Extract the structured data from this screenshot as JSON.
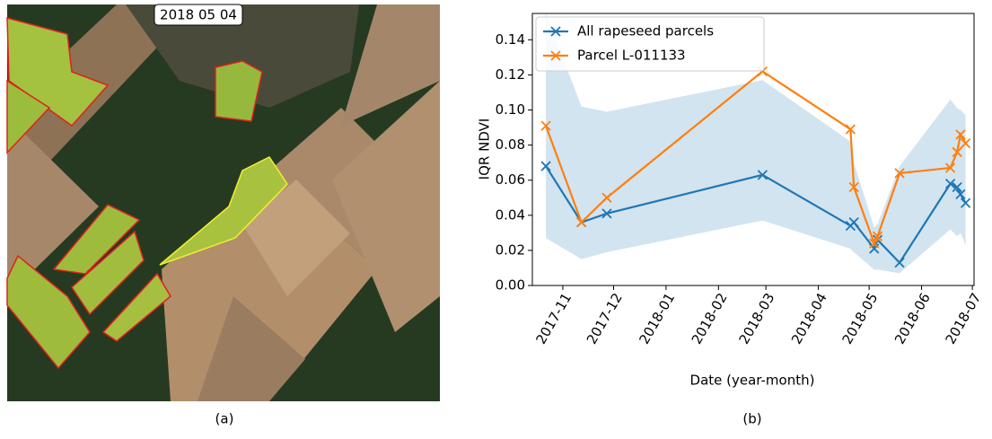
{
  "panel_a": {
    "date_label": "2018 05 04",
    "caption": "(a)"
  },
  "panel_b": {
    "caption": "(b)"
  },
  "chart_data": {
    "type": "line",
    "y_label": "IQR NDVI",
    "x_label": "Date (year-month)",
    "x": [
      "2017-10-22",
      "2017-11-12",
      "2017-11-27",
      "2018-02-27",
      "2018-04-20",
      "2018-04-22",
      "2018-05-04",
      "2018-05-06",
      "2018-05-19",
      "2018-06-18",
      "2018-06-22",
      "2018-06-24",
      "2018-06-27"
    ],
    "series": [
      {
        "name": "All rapeseed parcels",
        "color": "#1f77b4",
        "values": [
          0.068,
          0.036,
          0.041,
          0.063,
          0.034,
          0.036,
          0.021,
          0.026,
          0.013,
          0.058,
          0.056,
          0.052,
          0.047
        ]
      },
      {
        "name": "Parcel L-011133",
        "color": "#ff7f0e",
        "values": [
          0.091,
          0.036,
          0.05,
          0.122,
          0.089,
          0.056,
          0.024,
          0.028,
          0.064,
          0.067,
          0.076,
          0.086,
          0.081
        ]
      }
    ],
    "band": {
      "color": "#1f77b4",
      "lower": [
        0.027,
        0.015,
        0.019,
        0.037,
        0.021,
        0.019,
        0.009,
        0.009,
        0.007,
        0.032,
        0.028,
        0.03,
        0.023
      ],
      "upper": [
        0.155,
        0.102,
        0.099,
        0.117,
        0.082,
        0.07,
        0.033,
        0.035,
        0.068,
        0.106,
        0.101,
        0.1,
        0.097
      ]
    },
    "xlim": [
      "2017-10-14",
      "2018-07-02"
    ],
    "xticks": [
      {
        "value": "2017-11-01",
        "label": "2017-11"
      },
      {
        "value": "2017-12-01",
        "label": "2017-12"
      },
      {
        "value": "2018-01-01",
        "label": "2018-01"
      },
      {
        "value": "2018-02-01",
        "label": "2018-02"
      },
      {
        "value": "2018-03-01",
        "label": "2018-03"
      },
      {
        "value": "2018-04-01",
        "label": "2018-04"
      },
      {
        "value": "2018-05-01",
        "label": "2018-05"
      },
      {
        "value": "2018-06-01",
        "label": "2018-06"
      },
      {
        "value": "2018-07-01",
        "label": "2018-07"
      }
    ],
    "ylim": [
      0,
      0.155
    ],
    "yticks": [
      {
        "value": 0,
        "label": "0.00"
      },
      {
        "value": 0.02,
        "label": "0.02"
      },
      {
        "value": 0.04,
        "label": "0.04"
      },
      {
        "value": 0.06,
        "label": "0.06"
      },
      {
        "value": 0.08,
        "label": "0.08"
      },
      {
        "value": 0.1,
        "label": "0.10"
      },
      {
        "value": 0.12,
        "label": "0.12"
      },
      {
        "value": 0.14,
        "label": "0.14"
      }
    ],
    "legend": "upper left"
  }
}
